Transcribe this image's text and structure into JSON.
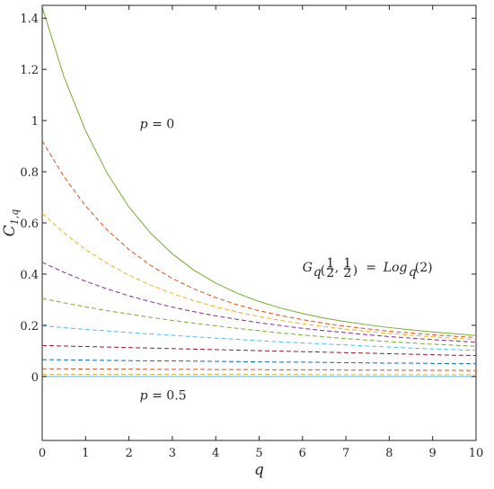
{
  "chart_data": {
    "type": "line",
    "title": "",
    "xlabel": "q",
    "ylabel_main": "C",
    "ylabel_sub": "1,q",
    "xlim": [
      0,
      10
    ],
    "ylim": [
      -0.25,
      1.45
    ],
    "xticks": [
      0,
      1,
      2,
      3,
      4,
      5,
      6,
      7,
      8,
      9,
      10
    ],
    "yticks": [
      0,
      0.2,
      0.4,
      0.6,
      0.8,
      1,
      1.2,
      1.4
    ],
    "ytick_labels": [
      "0",
      "0.2",
      "0.4",
      "0.6",
      "0.8",
      "1",
      "1.2",
      "1.4"
    ],
    "grid": false,
    "x": [
      0,
      0.5,
      1,
      1.5,
      2,
      2.5,
      3,
      3.5,
      4,
      4.5,
      5,
      5.5,
      6,
      6.5,
      7,
      7.5,
      8,
      8.5,
      9,
      9.5,
      10
    ],
    "series": [
      {
        "style": "solid",
        "color": "#77ac30",
        "values": [
          1.443,
          1.172,
          0.96,
          0.793,
          0.662,
          0.56,
          0.479,
          0.415,
          0.365,
          0.325,
          0.293,
          0.267,
          0.246,
          0.228,
          0.214,
          0.202,
          0.191,
          0.182,
          0.174,
          0.167,
          0.16
        ]
      },
      {
        "style": "dashed",
        "color": "#d95319",
        "values": [
          0.921,
          0.781,
          0.666,
          0.572,
          0.496,
          0.434,
          0.383,
          0.342,
          0.308,
          0.28,
          0.257,
          0.238,
          0.222,
          0.208,
          0.196,
          0.186,
          0.177,
          0.17,
          0.163,
          0.157,
          0.152
        ]
      },
      {
        "style": "dashed",
        "color": "#edb120",
        "values": [
          0.637,
          0.561,
          0.496,
          0.442,
          0.396,
          0.357,
          0.324,
          0.296,
          0.272,
          0.252,
          0.234,
          0.219,
          0.206,
          0.195,
          0.185,
          0.176,
          0.168,
          0.161,
          0.155,
          0.149,
          0.144
        ]
      },
      {
        "style": "dashed",
        "color": "#7e2f8e",
        "values": [
          0.446,
          0.407,
          0.372,
          0.342,
          0.315,
          0.292,
          0.271,
          0.253,
          0.237,
          0.223,
          0.21,
          0.199,
          0.188,
          0.179,
          0.171,
          0.163,
          0.156,
          0.15,
          0.144,
          0.139,
          0.134
        ]
      },
      {
        "style": "dashed",
        "color": "#77ac30",
        "values": [
          0.305,
          0.288,
          0.272,
          0.257,
          0.244,
          0.231,
          0.219,
          0.208,
          0.198,
          0.188,
          0.179,
          0.17,
          0.162,
          0.155,
          0.148,
          0.142,
          0.136,
          0.131,
          0.126,
          0.122,
          0.118
        ]
      },
      {
        "style": "dashed",
        "color": "#4dbeee",
        "values": [
          0.198,
          0.191,
          0.184,
          0.178,
          0.172,
          0.166,
          0.161,
          0.155,
          0.15,
          0.145,
          0.14,
          0.135,
          0.131,
          0.127,
          0.123,
          0.119,
          0.115,
          0.111,
          0.108,
          0.105,
          0.102
        ]
      },
      {
        "style": "dashed",
        "color": "#a2142f",
        "values": [
          0.121,
          0.119,
          0.117,
          0.115,
          0.113,
          0.111,
          0.109,
          0.107,
          0.105,
          0.103,
          0.101,
          0.099,
          0.097,
          0.095,
          0.093,
          0.091,
          0.089,
          0.087,
          0.085,
          0.083,
          0.082
        ]
      },
      {
        "style": "dashed",
        "color": "#0072bd",
        "values": [
          0.066,
          0.065,
          0.064,
          0.063,
          0.062,
          0.061,
          0.061,
          0.06,
          0.059,
          0.058,
          0.057,
          0.056,
          0.056,
          0.055,
          0.054,
          0.053,
          0.052,
          0.052,
          0.051,
          0.05,
          0.05
        ]
      },
      {
        "style": "dashed",
        "color": "#d95319",
        "values": [
          0.03,
          0.03,
          0.029,
          0.029,
          0.029,
          0.028,
          0.028,
          0.028,
          0.027,
          0.027,
          0.027,
          0.026,
          0.026,
          0.026,
          0.025,
          0.025,
          0.025,
          0.024,
          0.024,
          0.024,
          0.023
        ]
      },
      {
        "style": "dashed",
        "color": "#edb120",
        "values": [
          0.008,
          0.008,
          0.008,
          0.008,
          0.008,
          0.008,
          0.008,
          0.008,
          0.008,
          0.008,
          0.008,
          0.008,
          0.008,
          0.007,
          0.007,
          0.007,
          0.007,
          0.007,
          0.007,
          0.007,
          0.007
        ]
      },
      {
        "style": "solid",
        "color": "#4dbeee",
        "values": [
          0,
          0,
          0,
          0,
          0,
          0,
          0,
          0,
          0,
          0,
          0,
          0,
          0,
          0,
          0,
          0,
          0,
          0,
          0,
          0,
          0
        ]
      }
    ],
    "annotations": {
      "top": {
        "var": "p",
        "rel": " = ",
        "val": "0",
        "x": 2.25,
        "y": 0.97
      },
      "bottom": {
        "var": "p",
        "rel": " = ",
        "val": "0.5",
        "x": 2.25,
        "y": -0.09
      },
      "formula": {
        "G": "G",
        "Gsub": "q",
        "frac_num": "1",
        "frac_den": "2",
        "sep": ", ",
        "eq": " = ",
        "Log": "Log",
        "Logsub": "q",
        "arg": "(2)",
        "x": 6.0,
        "y": 0.41
      }
    }
  }
}
